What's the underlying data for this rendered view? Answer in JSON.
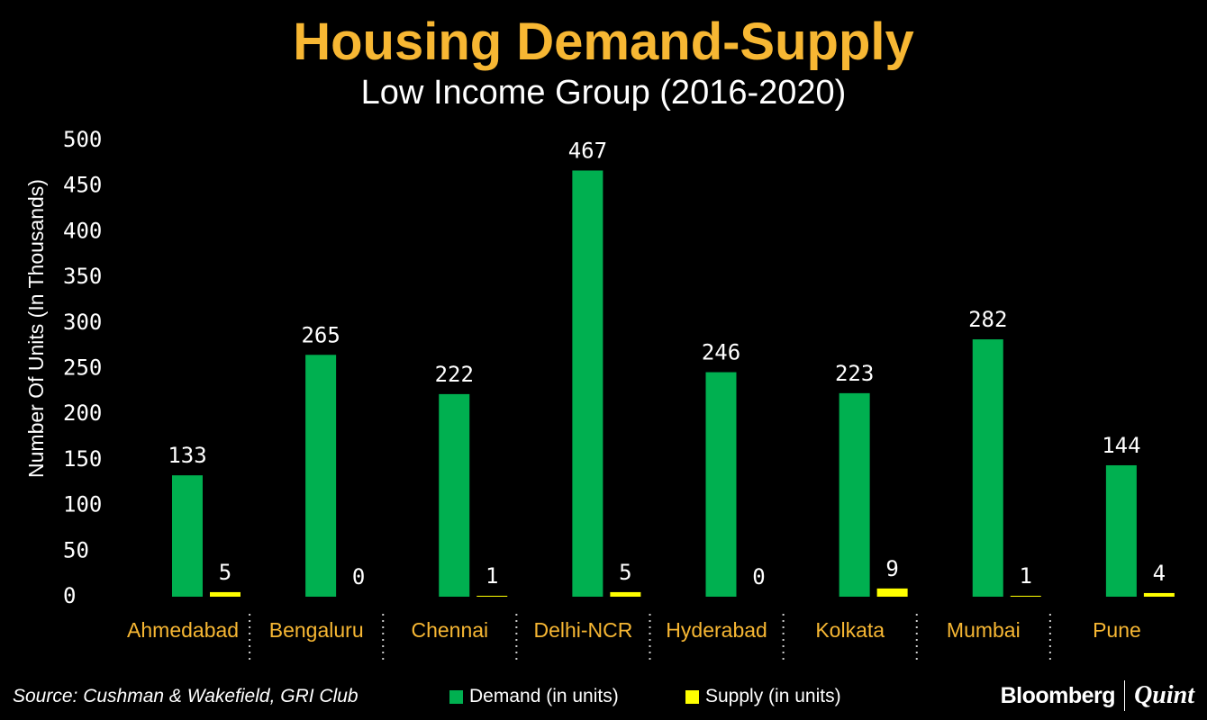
{
  "chart_data": {
    "type": "bar",
    "title": "Housing Demand-Supply",
    "subtitle": "Low Income Group (2016-2020)",
    "xlabel": "",
    "ylabel": "Number Of Units (In Thousands)",
    "ylim": [
      0,
      500
    ],
    "yticks": [
      0,
      50,
      100,
      150,
      200,
      250,
      300,
      350,
      400,
      450,
      500
    ],
    "grid": false,
    "categories": [
      "Ahmedabad",
      "Bengaluru",
      "Chennai",
      "Delhi-NCR",
      "Hyderabad",
      "Kolkata",
      "Mumbai",
      "Pune"
    ],
    "series": [
      {
        "name": "Demand (in units)",
        "color": "#00b050",
        "values": [
          133,
          265,
          222,
          467,
          246,
          223,
          282,
          144
        ]
      },
      {
        "name": "Supply (in units)",
        "color": "#ffff00",
        "values": [
          5,
          0,
          1,
          5,
          0,
          9,
          1,
          4
        ]
      }
    ],
    "legend_position": "bottom-center"
  },
  "colors": {
    "background": "#000000",
    "title": "#f7b733",
    "category_label": "#f7b733",
    "text": "#ffffff"
  },
  "footer": {
    "source": "Source: Cushman & Wakefield, GRI Club",
    "brand_primary": "Bloomberg",
    "brand_secondary": "Quint"
  }
}
